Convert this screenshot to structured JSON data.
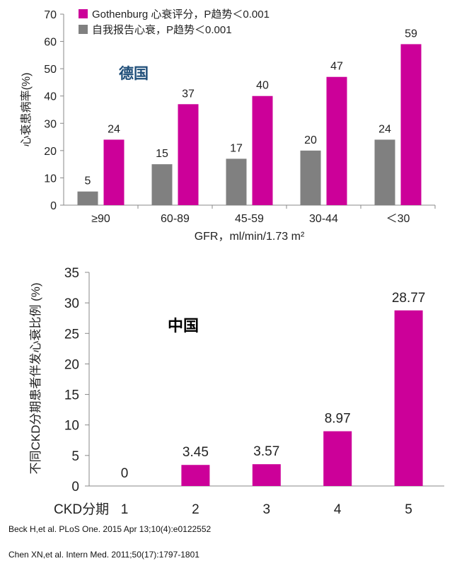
{
  "chart_data": [
    {
      "type": "bar",
      "annotation": "德国",
      "xlabel": "GFR，ml/min/1.73 m²",
      "ylabel": "心衰患病率(%)",
      "ylim": [
        0,
        70
      ],
      "yticks": [
        0,
        10,
        20,
        30,
        40,
        50,
        60,
        70
      ],
      "categories": [
        "≥90",
        "60-89",
        "45-59",
        "30-44",
        "＜30"
      ],
      "series": [
        {
          "name": "自我报告心衰，P趋势＜0.001",
          "color": "#808080",
          "values": [
            5,
            15,
            17,
            20,
            24
          ]
        },
        {
          "name": "Gothenburg 心衰评分，P趋势＜0.001",
          "color": "#cc0099",
          "values": [
            24,
            37,
            40,
            47,
            59
          ]
        }
      ],
      "legend_position": "top"
    },
    {
      "type": "bar",
      "annotation": "中国",
      "xlabel": "CKD分期",
      "ylabel": "不同CKD分期患者伴发心衰比例 (%)",
      "ylim": [
        0,
        35
      ],
      "yticks": [
        0,
        5,
        10,
        15,
        20,
        25,
        30,
        35
      ],
      "categories": [
        "1",
        "2",
        "3",
        "4",
        "5"
      ],
      "series": [
        {
          "name": "心衰比例",
          "color": "#cc0099",
          "values": [
            0,
            3.45,
            3.57,
            8.97,
            28.77
          ],
          "labels": [
            "0",
            "3.45",
            "3.57",
            "8.97",
            "28.77"
          ]
        }
      ]
    }
  ],
  "references": [
    "Beck H,et al.  PLoS One. 2015 Apr 13;10(4):e0122552",
    "Chen XN,et al.  Intern Med. 2011;50(17):1797-1801"
  ]
}
